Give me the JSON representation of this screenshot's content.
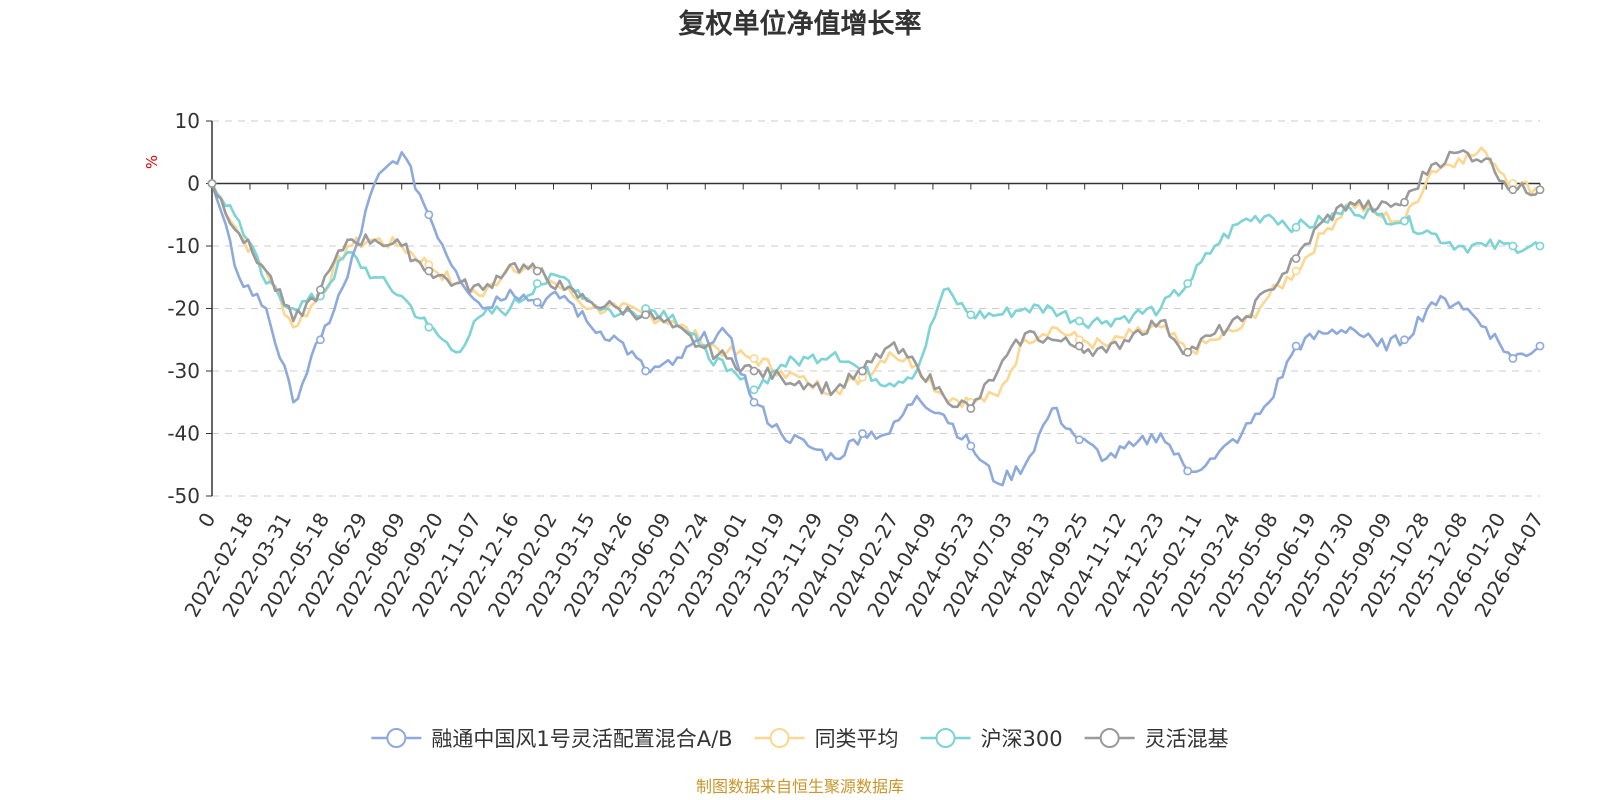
{
  "chart_data": {
    "type": "line",
    "title": "复权单位净值增长率",
    "ylabel": "%",
    "ylim": [
      -50,
      10
    ],
    "yticks": [
      10,
      0,
      -10,
      -20,
      -30,
      -40,
      -50
    ],
    "grid": true,
    "legend_position": "bottom",
    "x_tick_labels": [
      "0",
      "2022-02-18",
      "2022-03-31",
      "2022-05-18",
      "2022-06-29",
      "2022-08-09",
      "2022-09-20",
      "2022-11-07",
      "2022-12-16",
      "2023-02-02",
      "2023-03-15",
      "2023-04-26",
      "2023-06-09",
      "2023-07-24",
      "2023-09-01",
      "2023-10-19",
      "2023-11-29",
      "2024-01-09",
      "2024-02-27",
      "2024-04-09",
      "2024-05-23",
      "2024-07-03",
      "2024-08-13",
      "2024-09-25",
      "2024-11-12",
      "2024-12-23",
      "2025-02-11",
      "2025-03-24",
      "2025-05-08",
      "2025-06-19",
      "2025-07-30",
      "2025-09-09",
      "2025-10-28",
      "2025-12-08",
      "2026-01-20",
      "2026-04-07"
    ],
    "series": [
      {
        "name": "融通中国风1号灵活配置混合A/B",
        "color": "#8eaadb",
        "values": [
          0,
          -15,
          -20,
          -35,
          -25,
          -15,
          0,
          5,
          -5,
          -14,
          -20,
          -17,
          -19,
          -18,
          -23,
          -25,
          -30,
          -29,
          -25,
          -24,
          -35,
          -40,
          -42,
          -44,
          -40,
          -40,
          -34,
          -37,
          -42,
          -48,
          -45,
          -36,
          -41,
          -44,
          -42,
          -40,
          -46,
          -44,
          -40,
          -35,
          -26,
          -24,
          -23,
          -26,
          -25,
          -19,
          -19,
          -23,
          -28,
          -26
        ]
      },
      {
        "name": "同类平均",
        "color": "#fcd791",
        "values": [
          0,
          -8,
          -14,
          -23,
          -18,
          -10,
          -9,
          -10,
          -13,
          -16,
          -18,
          -13,
          -14,
          -17,
          -20,
          -20,
          -21,
          -22,
          -25,
          -27,
          -28,
          -30,
          -32,
          -33,
          -31,
          -27,
          -29,
          -34,
          -35,
          -34,
          -25,
          -23,
          -25,
          -26,
          -24,
          -23,
          -27,
          -25,
          -23,
          -18,
          -14,
          -8,
          -3,
          -5,
          -6,
          2,
          4,
          5,
          0,
          -1
        ]
      },
      {
        "name": "沪深300",
        "color": "#7dd3d5",
        "values": [
          0,
          -6,
          -16,
          -20,
          -18,
          -11,
          -15,
          -18,
          -23,
          -27,
          -21,
          -20,
          -16,
          -15,
          -19,
          -21,
          -20,
          -21,
          -26,
          -30,
          -33,
          -29,
          -28,
          -27,
          -30,
          -32,
          -30,
          -17,
          -21,
          -21,
          -20,
          -20,
          -22,
          -22,
          -21,
          -20,
          -16,
          -10,
          -6,
          -5,
          -7,
          -6,
          -4,
          -5,
          -6,
          -8,
          -10,
          -10,
          -10,
          -10
        ]
      },
      {
        "name": "灵活混基",
        "color": "#9a9a9a",
        "values": [
          0,
          -8,
          -14,
          -22,
          -17,
          -9,
          -9,
          -10,
          -14,
          -16,
          -17,
          -13,
          -14,
          -17,
          -19,
          -20,
          -21,
          -23,
          -26,
          -28,
          -30,
          -31,
          -32,
          -33,
          -30,
          -26,
          -29,
          -34,
          -36,
          -30,
          -24,
          -25,
          -26,
          -27,
          -24,
          -22,
          -27,
          -24,
          -22,
          -17,
          -12,
          -6,
          -3,
          -4,
          -3,
          3,
          5,
          4,
          -1,
          -1
        ]
      }
    ]
  },
  "source_text": "制图数据来自恒生聚源数据库"
}
